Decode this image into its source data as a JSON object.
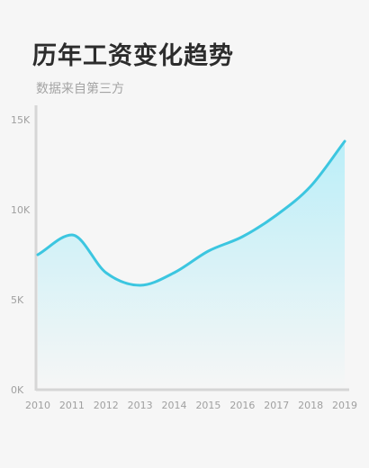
{
  "title": "历年工资变化趋势",
  "subtitle": "数据来自第三方",
  "chart_data": {
    "type": "area",
    "title": "历年工资变化趋势",
    "subtitle": "数据来自第三方",
    "xlabel": "",
    "ylabel": "",
    "x": [
      2010,
      2011,
      2012,
      2013,
      2014,
      2015,
      2016,
      2017,
      2018,
      2019
    ],
    "x_tick_labels": [
      "2010",
      "2011",
      "2012",
      "2013",
      "2014",
      "2015",
      "2016",
      "2017",
      "2018",
      "2019"
    ],
    "y_ticks": [
      0,
      5000,
      10000,
      15000
    ],
    "y_tick_labels": [
      "0K",
      "5K",
      "10K",
      "15K"
    ],
    "ylim": [
      0,
      15500
    ],
    "grid": false,
    "series": [
      {
        "values": [
          7500,
          8600,
          6500,
          5800,
          6500,
          7700,
          8500,
          9700,
          11300,
          13800
        ],
        "color": "#3cc6e0",
        "fill_color": "#b8eef8"
      }
    ]
  }
}
